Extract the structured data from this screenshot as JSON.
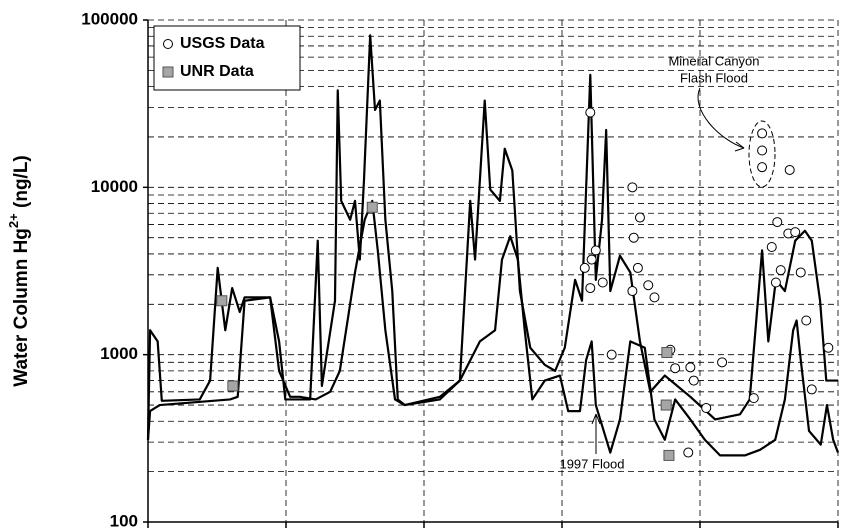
{
  "chart_data": {
    "type": "line",
    "y_label": {
      "main": "Water Column Hg",
      "sup": "2+",
      "unit": " (ng/L)"
    },
    "ylim": [
      100,
      100000
    ],
    "yticks": [
      100,
      1000,
      10000,
      100000
    ],
    "ylog": true,
    "xlim": [
      0,
      100
    ],
    "xticks": [
      0,
      20,
      40,
      60,
      80,
      100
    ],
    "grid": true,
    "legend": "upper left",
    "annotations": [
      {
        "lines": [
          "Mineral Canyon",
          "Flash Flood"
        ]
      },
      {
        "lines": [
          "1997 Flood"
        ]
      }
    ],
    "series": [
      {
        "type": "line",
        "color": "#000000",
        "x": [
          0,
          0.3,
          1.4,
          2,
          7.5,
          9,
          10.1,
          11.2,
          12.2,
          13.3,
          14,
          17.7,
          19,
          19.9,
          23.5,
          24.6,
          25.2,
          27.1,
          27.5,
          28,
          29.3,
          30,
          30.7,
          31.3,
          32.2,
          32.9,
          33.6,
          34.4,
          35.4,
          36.2,
          37.2,
          42.3,
          45.2,
          46.7,
          47.4,
          48.8,
          49.6,
          51,
          51.7,
          52.8,
          53.9,
          55.4,
          57.5,
          59,
          60.4,
          61.9,
          62.9,
          64.1,
          64.9,
          65.8,
          66.4,
          67,
          68.4,
          69.9,
          71.3,
          72.8,
          74.9,
          78.6,
          82.2,
          85.8,
          87.2,
          89,
          89.9,
          91,
          92.3,
          93.8,
          95.2,
          96.2,
          97.4,
          98.3,
          100
        ],
        "values": [
          310,
          1400,
          1200,
          530,
          540,
          700,
          3300,
          1400,
          2500,
          1800,
          2200,
          2200,
          1200,
          540,
          540,
          4800,
          650,
          2100,
          38000,
          8300,
          6400,
          8300,
          3700,
          11000,
          81000,
          29000,
          33000,
          6400,
          2400,
          540,
          500,
          560,
          700,
          8300,
          3700,
          33000,
          9700,
          8300,
          17000,
          12600,
          2400,
          1100,
          870,
          800,
          1100,
          2800,
          2100,
          47000,
          2800,
          6400,
          22000,
          2400,
          3900,
          3100,
          1200,
          600,
          750,
          560,
          410,
          440,
          540,
          4200,
          1200,
          2800,
          2400,
          4800,
          5500,
          4800,
          2100,
          700,
          700
        ]
      },
      {
        "type": "line",
        "color": "#000000",
        "x": [
          0,
          0.3,
          1.7,
          11.9,
          13,
          14,
          17.7,
          19,
          20.6,
          22,
          24.3,
          26.4,
          27.8,
          30,
          31.4,
          32.5,
          33.3,
          34.4,
          35.8,
          37.2,
          42.3,
          45.2,
          48.1,
          50.3,
          51.3,
          52.5,
          53.6,
          54.6,
          55.7,
          57.5,
          59.7,
          60.9,
          62.6,
          63.5,
          64.3,
          64.9,
          67,
          68.4,
          69.9,
          72,
          73.4,
          74.9,
          76.4,
          78.6,
          80.7,
          82.9,
          86.5,
          88.7,
          90.9,
          92.3,
          93.5,
          94,
          94.6,
          95.8,
          97.5,
          98.4,
          99.3,
          100
        ],
        "values": [
          310,
          460,
          500,
          540,
          560,
          2100,
          2200,
          800,
          560,
          560,
          540,
          600,
          800,
          3100,
          6400,
          8300,
          4200,
          1400,
          540,
          500,
          540,
          700,
          1200,
          1400,
          3700,
          5100,
          3700,
          1400,
          540,
          700,
          750,
          460,
          460,
          930,
          1200,
          500,
          260,
          410,
          1200,
          1100,
          410,
          310,
          540,
          410,
          310,
          250,
          250,
          270,
          310,
          540,
          1400,
          1600,
          930,
          350,
          290,
          500,
          310,
          260
        ]
      },
      {
        "type": "scatter",
        "name": "USGS Data",
        "marker": "circle",
        "color": "#ffffff",
        "x": [
          64.1,
          63.3,
          64.3,
          64.9,
          64.1,
          65.9,
          70.2,
          70.4,
          71.3,
          71,
          70.2,
          72.5,
          73.4,
          67.2,
          75.7,
          76.4,
          78.6,
          79.1,
          80.9,
          78.3,
          83.2,
          87.8,
          89,
          89,
          89,
          93,
          91.2,
          90.4,
          91,
          91.7,
          92.8,
          93.8,
          94.6,
          95.4,
          96.2,
          98.6
        ],
        "values": [
          28000,
          3300,
          3700,
          4200,
          2500,
          2700,
          10000,
          5000,
          6600,
          3300,
          2400,
          2600,
          2200,
          1000,
          1070,
          830,
          840,
          700,
          480,
          260,
          900,
          550,
          21000,
          16600,
          13200,
          12700,
          6200,
          4400,
          2700,
          3200,
          5300,
          5400,
          3100,
          1600,
          620,
          1100
        ]
      },
      {
        "type": "scatter",
        "name": "UNR Data",
        "marker": "square",
        "color": "#a6a6a6",
        "x": [
          10.7,
          12.3,
          32.5,
          75.2,
          75.1,
          75.5
        ],
        "values": [
          2100,
          650,
          7600,
          1030,
          500,
          250
        ]
      }
    ]
  }
}
